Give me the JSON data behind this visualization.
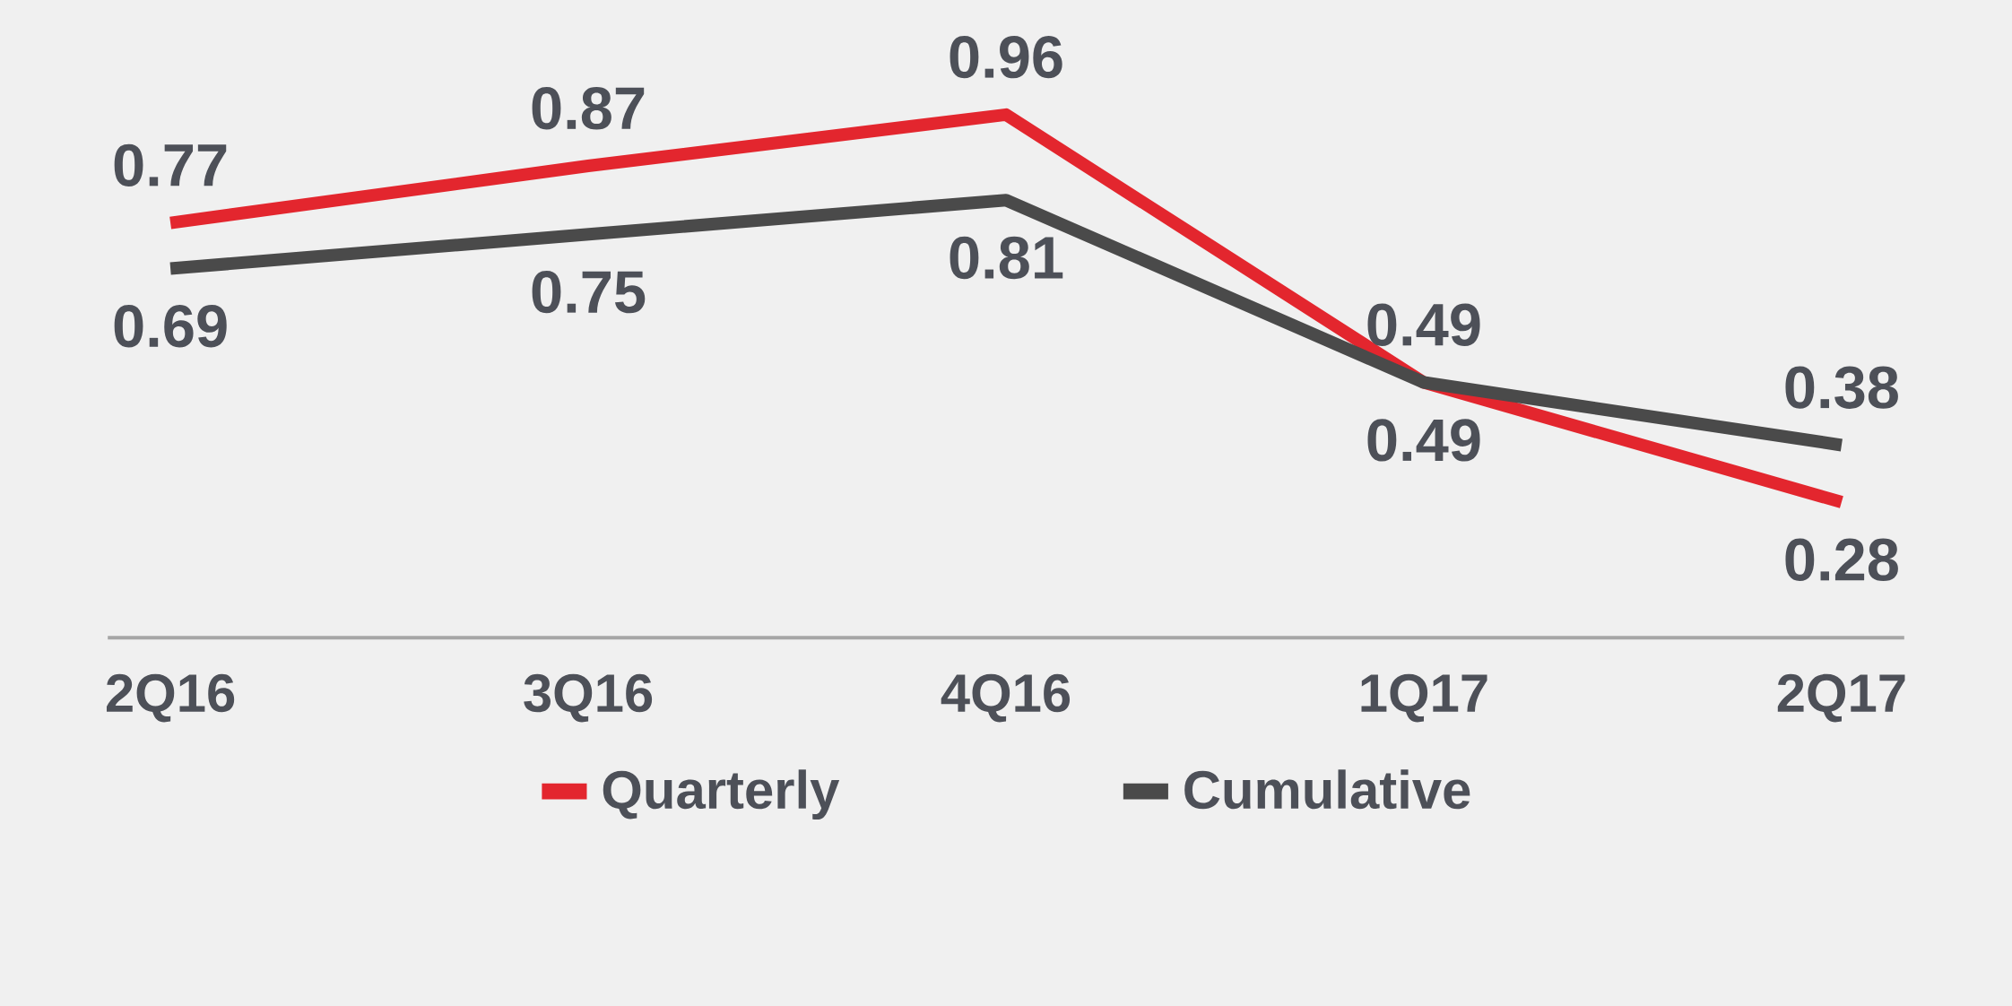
{
  "chart_data": {
    "type": "line",
    "categories": [
      "2Q16",
      "3Q16",
      "4Q16",
      "1Q17",
      "2Q17"
    ],
    "series": [
      {
        "name": "Quarterly",
        "color": "#e3262e",
        "values": [
          0.77,
          0.87,
          0.96,
          0.49,
          0.28
        ]
      },
      {
        "name": "Cumulative",
        "color": "#4a4a4a",
        "values": [
          0.69,
          0.75,
          0.81,
          0.49,
          0.38
        ]
      }
    ],
    "data_labels": true,
    "legend": "bottom"
  }
}
